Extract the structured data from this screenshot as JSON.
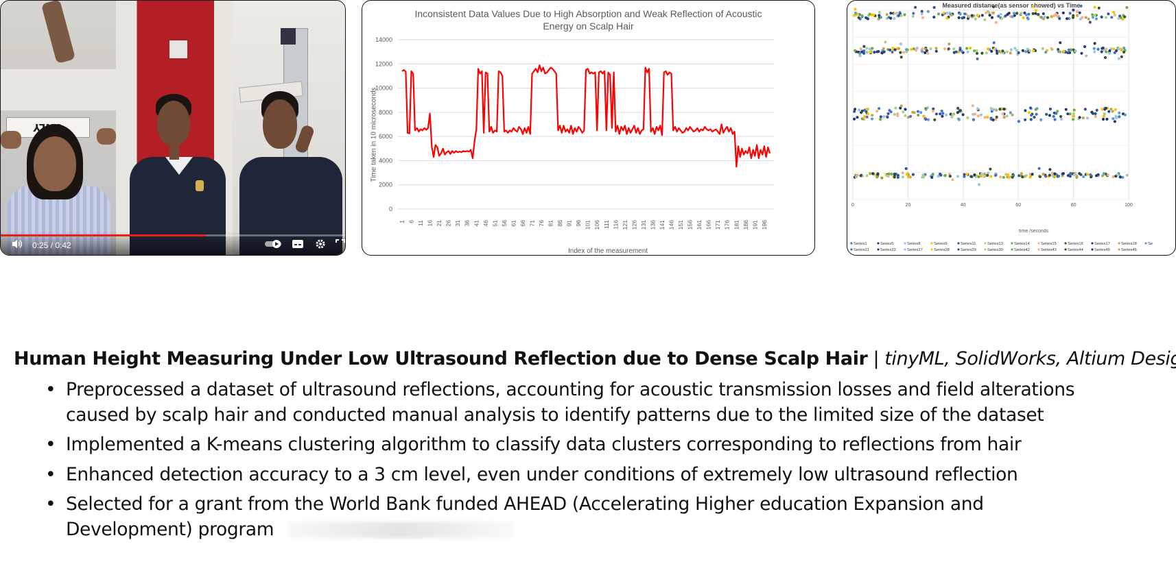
{
  "video": {
    "time": "0:25 / 0:42",
    "progress": 0.595,
    "sign_text": "ONLY",
    "icons": [
      "volume-icon",
      "autoplay-toggle-icon",
      "subtitles-icon",
      "settings-icon",
      "fullscreen-icon"
    ]
  },
  "chart_data": [
    {
      "type": "line",
      "title": "Inconsistent Data Values Due to High Absorption and Weak Reflection of Acoustic Energy on Scalp Hair",
      "xlabel": "Index of the measurement",
      "ylabel": "Time taken in 10 microseconds",
      "ylim": [
        0,
        14000
      ],
      "yticks": [
        0,
        2000,
        4000,
        6000,
        8000,
        10000,
        12000,
        14000
      ],
      "xtick_labels": [
        "1",
        "6",
        "11",
        "16",
        "21",
        "26",
        "31",
        "36",
        "41",
        "46",
        "51",
        "56",
        "61",
        "66",
        "71",
        "76",
        "81",
        "86",
        "91",
        "96",
        "101",
        "106",
        "111",
        "116",
        "121",
        "126",
        "131",
        "136",
        "141",
        "146",
        "151",
        "156",
        "161",
        "166",
        "171",
        "176",
        "181",
        "186",
        "191",
        "196"
      ],
      "grid": true,
      "color": "#ff0000",
      "x": [
        1,
        2,
        3,
        4,
        5,
        6,
        7,
        8,
        9,
        10,
        11,
        12,
        13,
        14,
        15,
        16,
        17,
        18,
        19,
        20,
        21,
        22,
        23,
        24,
        25,
        26,
        27,
        28,
        29,
        30,
        31,
        32,
        33,
        34,
        35,
        36,
        37,
        38,
        39,
        40,
        41,
        42,
        43,
        44,
        45,
        46,
        47,
        48,
        49,
        50,
        51,
        52,
        53,
        54,
        55,
        56,
        57,
        58,
        59,
        60,
        61,
        62,
        63,
        64,
        65,
        66,
        67,
        68,
        69,
        70,
        71,
        72,
        73,
        74,
        75,
        76,
        77,
        78,
        79,
        80,
        81,
        82,
        83,
        84,
        85,
        86,
        87,
        88,
        89,
        90,
        91,
        92,
        93,
        94,
        95,
        96,
        97,
        98,
        99,
        100,
        101,
        102,
        103,
        104,
        105,
        106,
        107,
        108,
        109,
        110,
        111,
        112,
        113,
        114,
        115,
        116,
        117,
        118,
        119,
        120,
        121,
        122,
        123,
        124,
        125,
        126,
        127,
        128,
        129,
        130,
        131,
        132,
        133,
        134,
        135,
        136,
        137,
        138,
        139,
        140,
        141,
        142,
        143,
        144,
        145,
        146,
        147,
        148,
        149,
        150,
        151,
        152,
        153,
        154,
        155,
        156,
        157,
        158,
        159,
        160,
        161,
        162,
        163,
        164,
        165,
        166,
        167,
        168,
        169,
        170,
        171,
        172,
        173,
        174,
        175,
        176,
        177,
        178,
        179,
        180,
        181,
        182,
        183,
        184,
        185,
        186,
        187,
        188,
        189,
        190,
        191,
        192,
        193,
        194,
        195,
        196,
        197,
        198,
        199
      ],
      "values": [
        11400,
        11500,
        11350,
        6300,
        6250,
        11400,
        11200,
        6500,
        6700,
        6400,
        6600,
        6500,
        6700,
        6550,
        6700,
        7900,
        5200,
        4300,
        5300,
        5100,
        4400,
        4600,
        5000,
        4500,
        4700,
        4800,
        4550,
        4800,
        4650,
        4800,
        4700,
        4750,
        4700,
        4800,
        4750,
        4800,
        4750,
        4900,
        4200,
        5600,
        6600,
        11600,
        11200,
        11400,
        6300,
        11300,
        11200,
        6400,
        6800,
        6300,
        6500,
        6400,
        11400,
        11300,
        11000,
        6400,
        6500,
        6300,
        6500,
        6400,
        6700,
        6500,
        6400,
        6800,
        6600,
        6200,
        6700,
        6300,
        6800,
        6200,
        11200,
        11400,
        11600,
        11300,
        11900,
        11400,
        11700,
        11200,
        11300,
        11500,
        11700,
        11600,
        11400,
        11200,
        6500,
        6900,
        6300,
        6900,
        6400,
        6600,
        6300,
        6900,
        6200,
        6700,
        6400,
        6800,
        6600,
        6300,
        6500,
        11500,
        11600,
        11200,
        11300,
        11200,
        11300,
        6500,
        11300,
        11400,
        11200,
        11400,
        6500,
        11300,
        11100,
        6700,
        11300,
        6400,
        6900,
        6200,
        6800,
        6500,
        6900,
        6200,
        6700,
        6300,
        6600,
        6900,
        6300,
        6700,
        6200,
        6500,
        6600,
        11700,
        11300,
        11600,
        6400,
        6700,
        6200,
        6800,
        6500,
        6900,
        6100,
        11300,
        11400,
        11100,
        11300,
        11200,
        6500,
        6800,
        6400,
        6700,
        6500,
        6300,
        6400,
        6700,
        6500,
        6800,
        6600,
        6400,
        6500,
        6700,
        6400,
        6600,
        6500,
        6800,
        6600,
        6500,
        6600,
        6400,
        6500,
        6600,
        6400,
        6200,
        7000,
        6300,
        6600,
        6800,
        6400,
        6700,
        6200,
        6400,
        3500,
        5200,
        4300,
        5000,
        4500,
        4800,
        4600,
        5100,
        4200,
        4900,
        4400,
        5300,
        4200,
        4900,
        4500,
        5200,
        4300,
        5100,
        4600
      ]
    },
    {
      "type": "scatter",
      "title": "Measured distance(as sensor showed) vs Time",
      "xlabel": "time /seconds",
      "ylabel": "",
      "xlim": [
        0,
        100
      ],
      "xticks": [
        0,
        20,
        40,
        60,
        80,
        100
      ],
      "grid": true,
      "legend_position": "bottom",
      "legend": [
        "Series1",
        "Series5",
        "Series8",
        "Series9",
        "Series11",
        "Series13",
        "Series14",
        "Series15",
        "Series16",
        "Series17",
        "Series18",
        "Se",
        "Series21",
        "Series22",
        "Series27",
        "Series28",
        "Series29",
        "Series30",
        "Series42",
        "Series43",
        "Series44",
        "Series45",
        "Series46"
      ],
      "colors": [
        "#4472c4",
        "#264478",
        "#9dc3e6",
        "#ffc000",
        "#2f5597",
        "#a9d18e",
        "#70ad47",
        "#f4b183",
        "#385723",
        "#1f3864",
        "#c5a44c",
        "#5b9bd5"
      ]
    }
  ],
  "resume": {
    "title": "Human Height Measuring Under Low Ultrasound Reflection due to Dense Scalp Hair",
    "separator": "|",
    "tools": "tinyML, SolidWorks, Altium Designer",
    "bullets": [
      "Preprocessed a dataset of ultrasound reflections, accounting for acoustic transmission losses and field alterations caused by scalp hair and conducted manual analysis to identify patterns due to the limited size of the dataset",
      "Implemented a K-means clustering algorithm to classify data clusters corresponding to reflections from hair",
      "Enhanced detection accuracy to a 3 cm level, even under conditions of extremely low ultrasound reflection",
      "Selected for a grant from the World Bank funded AHEAD (Accelerating Higher education Expansion and Development) program"
    ]
  }
}
